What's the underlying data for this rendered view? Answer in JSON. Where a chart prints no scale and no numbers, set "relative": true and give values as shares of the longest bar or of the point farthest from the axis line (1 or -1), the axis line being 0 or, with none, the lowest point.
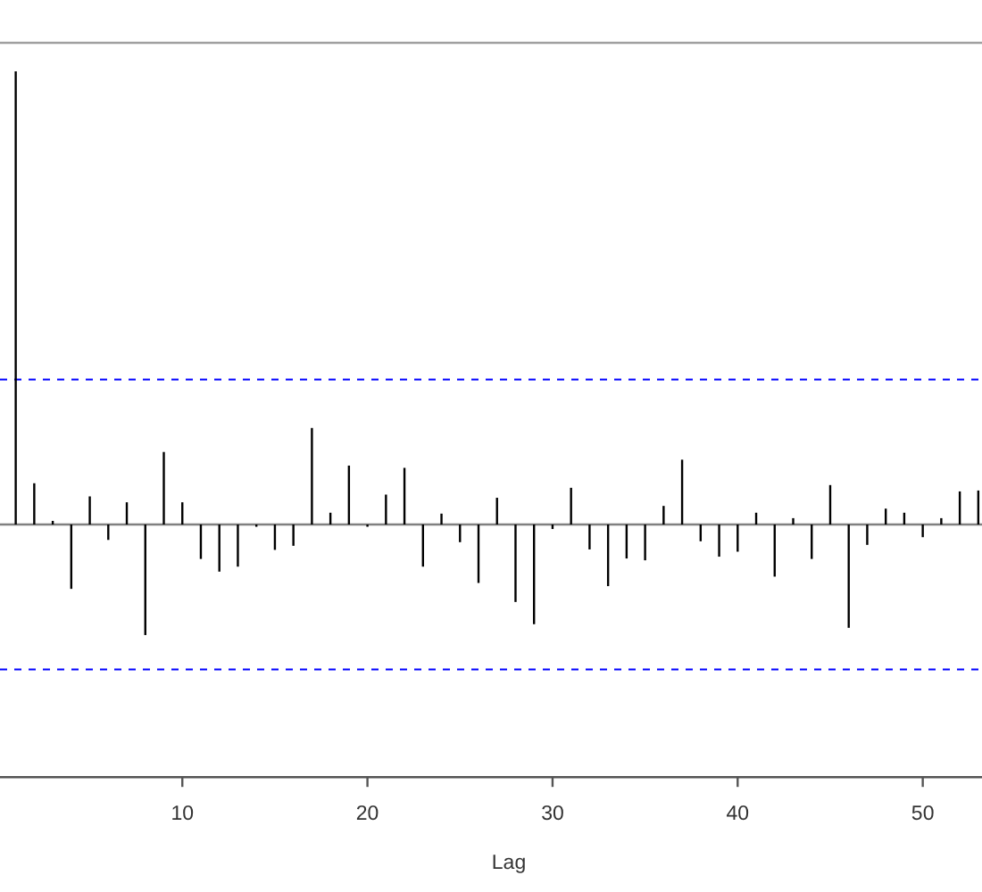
{
  "chart_data": {
    "type": "bar",
    "relative": true,
    "xlabel": "Lag",
    "x": [
      1,
      2,
      3,
      4,
      5,
      6,
      7,
      8,
      9,
      10,
      11,
      12,
      13,
      14,
      15,
      16,
      17,
      18,
      19,
      20,
      21,
      22,
      23,
      24,
      25,
      26,
      27,
      28,
      29,
      30,
      31,
      32,
      33,
      34,
      35,
      36,
      37,
      38,
      39,
      40,
      41,
      42,
      43,
      44,
      45,
      46,
      47,
      48,
      49,
      50,
      51,
      52,
      53
    ],
    "values": [
      1,
      0.091,
      0.008,
      -0.142,
      0.062,
      -0.034,
      0.049,
      -0.244,
      0.16,
      0.049,
      -0.076,
      -0.104,
      -0.093,
      -0.005,
      -0.056,
      -0.047,
      0.213,
      0.026,
      0.13,
      -0.005,
      0.066,
      0.125,
      -0.093,
      0.024,
      -0.039,
      -0.129,
      0.059,
      -0.171,
      -0.22,
      -0.01,
      0.081,
      -0.055,
      -0.136,
      -0.075,
      -0.079,
      0.041,
      0.143,
      -0.037,
      -0.071,
      -0.06,
      0.026,
      -0.115,
      0.014,
      -0.076,
      0.087,
      -0.228,
      -0.045,
      0.035,
      0.026,
      -0.028,
      0.014,
      0.073,
      0.075
    ],
    "color": "#000000",
    "xlim": [
      0.15,
      53.2
    ],
    "xticks": [
      10,
      20,
      30,
      40,
      50
    ],
    "tick_labels": "x",
    "ref_lines": [
      {
        "axis": "y",
        "value": 0.32,
        "color": "#0000ff",
        "line_style": "dashed"
      },
      {
        "axis": "y",
        "value": -0.32,
        "color": "#0000ff",
        "line_style": "dashed"
      }
    ]
  }
}
